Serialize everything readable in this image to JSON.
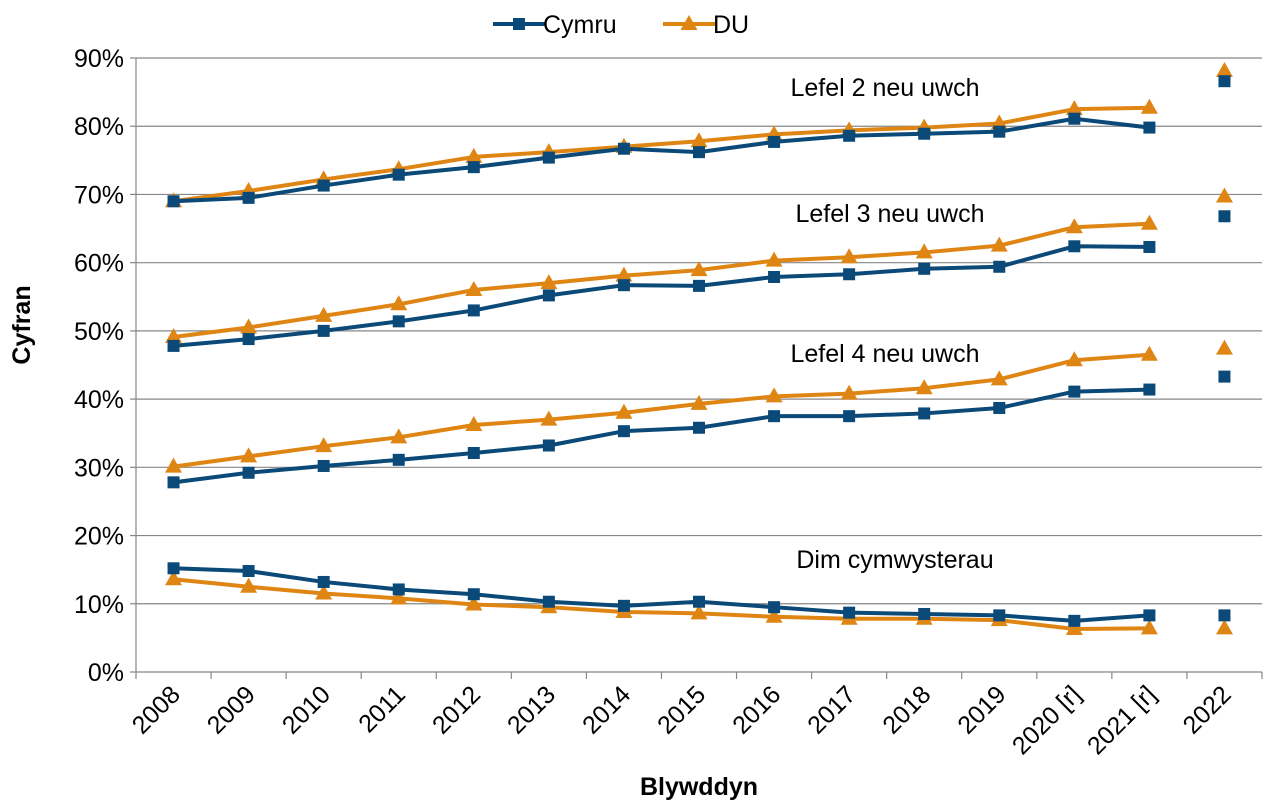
{
  "chart_data": {
    "type": "line",
    "title": "",
    "xlabel": "Blywddyn",
    "ylabel": "Cyfran",
    "categories": [
      "2008",
      "2009",
      "2010",
      "2011",
      "2012",
      "2013",
      "2014",
      "2015",
      "2016",
      "2017",
      "2018",
      "2019",
      "2020 [r]",
      "2021 [r]",
      "2022"
    ],
    "ylim": [
      0,
      90
    ],
    "yticks": [
      "0%",
      "10%",
      "20%",
      "30%",
      "40%",
      "50%",
      "60%",
      "70%",
      "80%",
      "90%"
    ],
    "grid": true,
    "legend_position": "top",
    "series_meta": [
      {
        "name": "Cymru",
        "color": "#0b4a78",
        "marker": "square"
      },
      {
        "name": "DU",
        "color": "#df8514",
        "marker": "triangle"
      }
    ],
    "groups": [
      {
        "label": "Lefel 2 neu uwch",
        "series": [
          {
            "name": "Cymru",
            "values": [
              69.0,
              69.5,
              71.3,
              72.9,
              74.0,
              75.4,
              76.7,
              76.2,
              77.7,
              78.6,
              78.9,
              79.2,
              81.1,
              79.8,
              86.6
            ]
          },
          {
            "name": "DU",
            "values": [
              69.0,
              70.5,
              72.2,
              73.7,
              75.5,
              76.2,
              77.0,
              77.8,
              78.8,
              79.4,
              79.8,
              80.4,
              82.5,
              82.7,
              88.1
            ]
          }
        ]
      },
      {
        "label": "Lefel 3 neu uwch",
        "series": [
          {
            "name": "Cymru",
            "values": [
              47.8,
              48.8,
              50.0,
              51.4,
              53.0,
              55.2,
              56.7,
              56.6,
              57.9,
              58.3,
              59.1,
              59.4,
              62.4,
              62.3,
              66.8
            ]
          },
          {
            "name": "DU",
            "values": [
              49.1,
              50.5,
              52.2,
              53.9,
              56.0,
              57.0,
              58.1,
              58.9,
              60.3,
              60.8,
              61.5,
              62.5,
              65.2,
              65.7,
              69.7
            ]
          }
        ]
      },
      {
        "label": "Lefel 4 neu uwch",
        "series": [
          {
            "name": "Cymru",
            "values": [
              27.8,
              29.2,
              30.2,
              31.1,
              32.1,
              33.2,
              35.3,
              35.8,
              37.5,
              37.5,
              37.9,
              38.7,
              41.1,
              41.4,
              43.3
            ]
          },
          {
            "name": "DU",
            "values": [
              30.1,
              31.6,
              33.1,
              34.4,
              36.2,
              37.0,
              38.0,
              39.3,
              40.4,
              40.8,
              41.6,
              42.9,
              45.7,
              46.5,
              47.4
            ]
          }
        ]
      },
      {
        "label": "Dim cymwysterau",
        "series": [
          {
            "name": "Cymru",
            "values": [
              15.2,
              14.8,
              13.2,
              12.1,
              11.4,
              10.3,
              9.7,
              10.3,
              9.5,
              8.7,
              8.5,
              8.3,
              7.5,
              8.3,
              8.3
            ]
          },
          {
            "name": "DU",
            "values": [
              13.6,
              12.5,
              11.5,
              10.8,
              9.9,
              9.5,
              8.8,
              8.6,
              8.1,
              7.8,
              7.8,
              7.6,
              6.3,
              6.4,
              6.4
            ]
          }
        ]
      }
    ]
  }
}
